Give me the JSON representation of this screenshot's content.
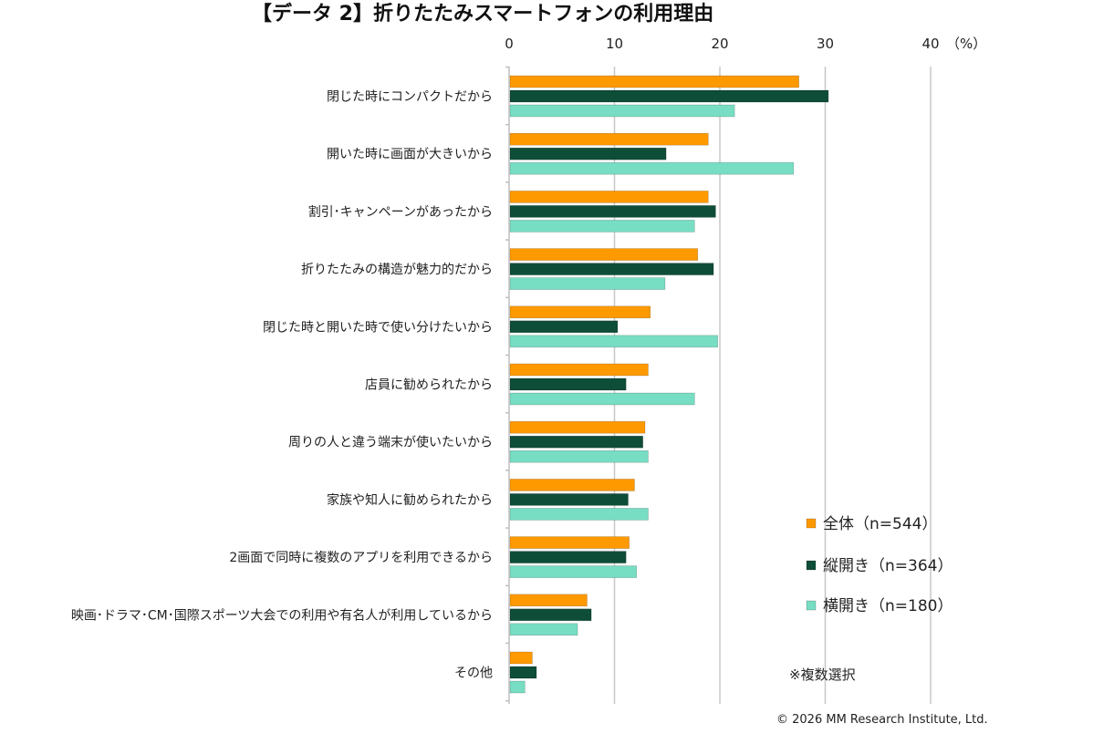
{
  "chart_data": {
    "type": "bar",
    "orientation": "horizontal",
    "title": "【データ 2】折りたたみスマートフォンの利用理由",
    "unit_label": "（%）",
    "xlim": [
      0,
      40
    ],
    "ticks": [
      0,
      10,
      20,
      30,
      40
    ],
    "grid": true,
    "categories": [
      "閉じた時にコンパクトだから",
      "開いた時に画面が大きいから",
      "割引･キャンペーンがあったから",
      "折りたたみの構造が魅力的だから",
      "閉じた時と開いた時で使い分けたいから",
      "店員に勧められたから",
      "周りの人と違う端末が使いたいから",
      "家族や知人に勧められたから",
      "2画面で同時に複数のアプリを利用できるから",
      "映画･ドラマ･CM･国際スポーツ大会での利用や有名人が利用しているから",
      "その他"
    ],
    "series": [
      {
        "name": "全体（n=544）",
        "color": "#FF9900",
        "values": [
          27.5,
          18.9,
          18.9,
          17.9,
          13.4,
          13.2,
          12.9,
          11.9,
          11.4,
          7.4,
          2.2
        ]
      },
      {
        "name": "縦開き（n=364）",
        "color": "#0E4D38",
        "values": [
          30.3,
          14.9,
          19.6,
          19.4,
          10.3,
          11.1,
          12.7,
          11.3,
          11.1,
          7.8,
          2.6
        ]
      },
      {
        "name": "横開き（n=180）",
        "color": "#77DDC3",
        "values": [
          21.4,
          27.0,
          17.6,
          14.8,
          19.8,
          17.6,
          13.2,
          13.2,
          12.1,
          6.5,
          1.5
        ]
      }
    ],
    "legend_position": "bottom-right",
    "note": "※複数選択",
    "copyright": "© 2026 MM Research Institute, Ltd."
  }
}
